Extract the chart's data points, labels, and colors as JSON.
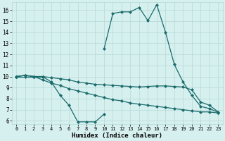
{
  "title": "",
  "xlabel": "Humidex (Indice chaleur)",
  "bg_color": "#d6f0ef",
  "grid_color": "#b5d8d5",
  "line_color": "#1a6b6b",
  "xlim": [
    -0.5,
    23.5
  ],
  "ylim": [
    5.7,
    16.7
  ],
  "yticks": [
    6,
    7,
    8,
    9,
    10,
    11,
    12,
    13,
    14,
    15,
    16
  ],
  "xticks": [
    0,
    1,
    2,
    3,
    4,
    5,
    6,
    7,
    8,
    9,
    10,
    11,
    12,
    13,
    14,
    15,
    16,
    17,
    18,
    19,
    20,
    21,
    22,
    23
  ],
  "series1_y": [
    10.0,
    10.1,
    10.0,
    10.0,
    9.5,
    8.3,
    7.4,
    5.9,
    5.9,
    5.9,
    6.6,
    null,
    null,
    null,
    null,
    null,
    null,
    null,
    null,
    null,
    null,
    null,
    null,
    null
  ],
  "series2_y": [
    10.0,
    10.1,
    10.0,
    10.0,
    9.9,
    9.8,
    9.7,
    9.5,
    9.4,
    9.3,
    9.25,
    9.2,
    9.15,
    9.1,
    9.05,
    9.1,
    9.15,
    9.15,
    9.1,
    9.05,
    8.8,
    7.7,
    7.4,
    6.8
  ],
  "series3_y": [
    10.0,
    10.1,
    10.0,
    9.7,
    9.4,
    9.2,
    8.9,
    8.7,
    8.5,
    8.3,
    8.1,
    7.9,
    7.8,
    7.6,
    7.5,
    7.4,
    7.3,
    7.2,
    7.1,
    7.0,
    6.9,
    6.8,
    6.8,
    6.7
  ],
  "series4_y": [
    10.0,
    10.0,
    10.0,
    10.0,
    null,
    null,
    null,
    null,
    null,
    null,
    12.5,
    15.7,
    15.85,
    15.85,
    16.25,
    15.05,
    16.5,
    14.0,
    11.1,
    9.5,
    8.3,
    7.3,
    7.1,
    6.75
  ]
}
